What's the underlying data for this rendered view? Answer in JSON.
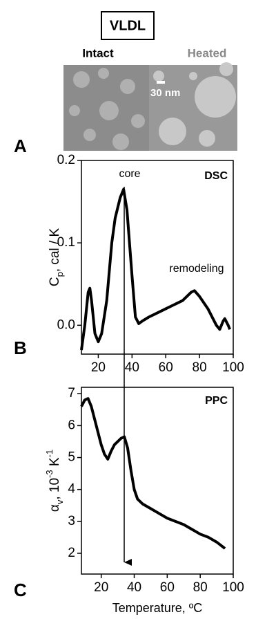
{
  "figure": {
    "title": "VLDL",
    "image_labels": [
      "Intact",
      "Heated"
    ],
    "scale_bar": "30 nm",
    "panels": [
      "A",
      "B",
      "C"
    ]
  },
  "chart_data": [
    {
      "type": "line",
      "title": "DSC",
      "annotations": [
        "core",
        "remodeling"
      ],
      "ylabel_parts": [
        "C",
        "p",
        ", cal / K"
      ],
      "color": "#000000",
      "xlim": [
        10,
        100
      ],
      "xticks": [
        20,
        40,
        60,
        80,
        100
      ],
      "ylim": [
        -0.035,
        0.2
      ],
      "yticks": [
        {
          "value": 0,
          "label": "0.0"
        },
        0.1,
        0.2
      ],
      "x": [
        10,
        12,
        14,
        15,
        16,
        18,
        20,
        22,
        25,
        28,
        30,
        33,
        35,
        37,
        40,
        42,
        44,
        46,
        50,
        55,
        60,
        65,
        70,
        75,
        77,
        80,
        85,
        90,
        92,
        94,
        95,
        97,
        98
      ],
      "values": [
        -0.03,
        0.0,
        0.04,
        0.045,
        0.03,
        -0.01,
        -0.02,
        -0.01,
        0.03,
        0.1,
        0.13,
        0.155,
        0.165,
        0.14,
        0.06,
        0.01,
        0.002,
        0.005,
        0.01,
        0.015,
        0.02,
        0.025,
        0.03,
        0.04,
        0.042,
        0.035,
        0.02,
        0.0,
        -0.005,
        0.005,
        0.008,
        0.0,
        -0.005
      ]
    },
    {
      "type": "line",
      "title": "PPC",
      "xlabel": "Temperature, ºC",
      "ylabel_parts": [
        "α",
        "v",
        ", 10",
        "-3",
        " K",
        "-1"
      ],
      "color": "#000000",
      "xlim": [
        8,
        100
      ],
      "xticks": [
        20,
        40,
        60,
        80,
        100
      ],
      "ylim": [
        1.35,
        7.2
      ],
      "yticks": [
        2,
        3,
        4,
        5,
        6,
        7
      ],
      "x": [
        8,
        10,
        12,
        14,
        16,
        18,
        20,
        22,
        24,
        26,
        28,
        30,
        32,
        34,
        36,
        38,
        40,
        42,
        45,
        50,
        55,
        60,
        65,
        70,
        75,
        80,
        85,
        90,
        95
      ],
      "values": [
        6.6,
        6.8,
        6.85,
        6.6,
        6.2,
        5.8,
        5.4,
        5.1,
        4.95,
        5.2,
        5.4,
        5.5,
        5.6,
        5.65,
        5.3,
        4.6,
        4.0,
        3.7,
        3.55,
        3.4,
        3.25,
        3.1,
        3.0,
        2.9,
        2.75,
        2.6,
        2.5,
        2.35,
        2.15
      ]
    }
  ]
}
